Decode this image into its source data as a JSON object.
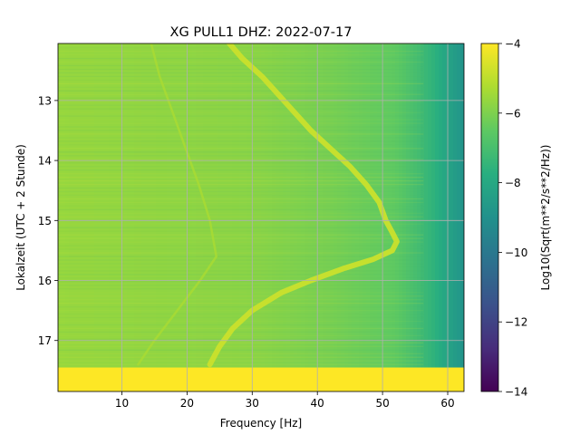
{
  "chart_data": {
    "type": "heatmap",
    "title": "XG PULL1  DHZ: 2022-07-17",
    "xlabel": "Frequency [Hz]",
    "ylabel": "Lokalzeit (UTC + 2 Stunde)",
    "xlim": [
      0.2,
      62.5
    ],
    "ylim": [
      17.85,
      12.05
    ],
    "y_inverted": true,
    "grid": true,
    "x_ticks": [
      10,
      20,
      30,
      40,
      50,
      60
    ],
    "x_tick_labels": [
      "10",
      "20",
      "30",
      "40",
      "50",
      "60"
    ],
    "y_ticks": [
      13,
      14,
      15,
      16,
      17
    ],
    "y_tick_labels": [
      "13",
      "14",
      "15",
      "16",
      "17"
    ],
    "colorbar": {
      "label": "Log10(Sqrt(m**2/s**2/Hz))",
      "range": [
        -14,
        -4
      ],
      "ticks": [
        -4,
        -6,
        -8,
        -10,
        -12,
        -14
      ],
      "tick_labels": [
        "−4",
        "−6",
        "−8",
        "−10",
        "−12",
        "−14"
      ],
      "colormap": "viridis"
    },
    "background": {
      "value_by_frequency": [
        {
          "f": 0.2,
          "v": -5.6
        },
        {
          "f": 30,
          "v": -5.8
        },
        {
          "f": 42,
          "v": -6.1
        },
        {
          "f": 52,
          "v": -6.5
        },
        {
          "f": 55,
          "v": -7.0
        },
        {
          "f": 58,
          "v": -7.6
        },
        {
          "f": 60,
          "v": -8.2
        },
        {
          "f": 62.5,
          "v": -8.9
        }
      ],
      "saturated_band": {
        "time_from": 17.45,
        "time_to": 17.85,
        "value": -4
      }
    },
    "series": [
      {
        "value": -4.8,
        "points": [
          {
            "t": 12.05,
            "f": 26.5
          },
          {
            "t": 12.3,
            "f": 28.5
          },
          {
            "t": 12.6,
            "f": 31.5
          },
          {
            "t": 12.9,
            "f": 34.0
          },
          {
            "t": 13.2,
            "f": 36.5
          },
          {
            "t": 13.5,
            "f": 39.0
          },
          {
            "t": 13.8,
            "f": 42.0
          },
          {
            "t": 14.1,
            "f": 45.0
          },
          {
            "t": 14.4,
            "f": 47.5
          },
          {
            "t": 14.7,
            "f": 49.5
          },
          {
            "t": 15.0,
            "f": 50.5
          },
          {
            "t": 15.2,
            "f": 51.5
          },
          {
            "t": 15.35,
            "f": 52.2
          },
          {
            "t": 15.5,
            "f": 51.5
          },
          {
            "t": 15.65,
            "f": 48.5
          },
          {
            "t": 15.8,
            "f": 44.0
          },
          {
            "t": 16.0,
            "f": 39.0
          },
          {
            "t": 16.2,
            "f": 34.5
          },
          {
            "t": 16.5,
            "f": 30.0
          },
          {
            "t": 16.8,
            "f": 27.0
          },
          {
            "t": 17.1,
            "f": 25.0
          },
          {
            "t": 17.4,
            "f": 23.5
          }
        ]
      },
      {
        "value": -5.3,
        "points": [
          {
            "t": 12.05,
            "f": 14.5
          },
          {
            "t": 12.6,
            "f": 15.8
          },
          {
            "t": 13.2,
            "f": 17.8
          },
          {
            "t": 13.8,
            "f": 19.8
          },
          {
            "t": 14.4,
            "f": 21.8
          },
          {
            "t": 15.0,
            "f": 23.5
          },
          {
            "t": 15.6,
            "f": 24.5
          },
          {
            "t": 16.0,
            "f": 22.0
          },
          {
            "t": 16.5,
            "f": 18.5
          },
          {
            "t": 17.0,
            "f": 15.0
          },
          {
            "t": 17.4,
            "f": 12.5
          }
        ]
      }
    ]
  }
}
